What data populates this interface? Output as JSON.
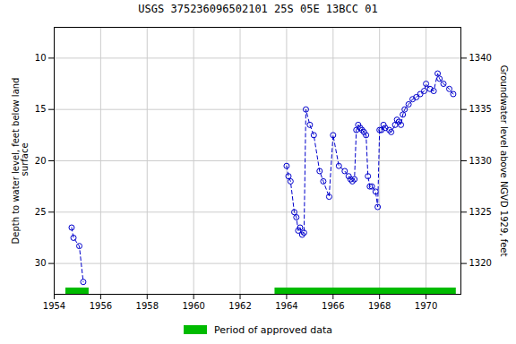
{
  "chart_data": {
    "type": "line",
    "title": "USGS 375236096502101 25S 05E 13BCC 01",
    "ylabel": "Depth to water level, feet below land\n surface",
    "y2label": "Groundwater level above NGVD 1929, feet",
    "xlim": [
      1954,
      1971.5
    ],
    "xticks": [
      1954,
      1956,
      1958,
      1960,
      1962,
      1964,
      1966,
      1968,
      1970
    ],
    "ylim": [
      33,
      7
    ],
    "yticks": [
      10,
      15,
      20,
      25,
      30
    ],
    "y2lim": [
      1317,
      1343
    ],
    "y2ticks": [
      1320,
      1325,
      1330,
      1335,
      1340
    ],
    "grid": true,
    "legend": "bottom",
    "series": [
      {
        "color": "#0000cc",
        "marker": "o",
        "line_style": "dashed",
        "x": [
          1954.75,
          1954.83,
          1955.08,
          1955.25
        ],
        "values": [
          26.5,
          27.5,
          28.3,
          31.8
        ]
      },
      {
        "color": "#0000cc",
        "marker": "o",
        "line_style": "dashed",
        "x": [
          1964.0,
          1964.08,
          1964.17,
          1964.33,
          1964.42,
          1964.5,
          1964.58,
          1964.67,
          1964.75,
          1964.83,
          1965.0,
          1965.17,
          1965.42,
          1965.58,
          1965.83,
          1966.0,
          1966.25,
          1966.5,
          1966.67,
          1966.75,
          1966.83,
          1966.92,
          1967.0,
          1967.08,
          1967.17,
          1967.25,
          1967.33,
          1967.42,
          1967.5,
          1967.58,
          1967.67,
          1967.83,
          1967.92,
          1968.0,
          1968.08,
          1968.17,
          1968.25,
          1968.42,
          1968.5,
          1968.67,
          1968.75,
          1968.83,
          1968.92,
          1969.0,
          1969.08,
          1969.25,
          1969.42,
          1969.58,
          1969.75,
          1969.92,
          1970.0,
          1970.17,
          1970.33,
          1970.5,
          1970.58,
          1970.75,
          1971.0,
          1971.17
        ],
        "values": [
          20.5,
          21.5,
          22.0,
          25.0,
          25.5,
          26.8,
          26.5,
          27.2,
          27.0,
          15.0,
          16.5,
          17.5,
          21.0,
          22.0,
          23.5,
          17.5,
          20.5,
          21.0,
          21.5,
          21.8,
          22.0,
          21.8,
          17.0,
          16.5,
          16.8,
          17.0,
          17.2,
          17.5,
          21.5,
          22.5,
          22.5,
          23.0,
          24.5,
          17.0,
          17.0,
          16.5,
          16.8,
          17.0,
          17.2,
          16.5,
          16.0,
          16.2,
          16.5,
          15.5,
          15.0,
          14.5,
          14.0,
          13.8,
          13.5,
          13.2,
          12.5,
          13.0,
          13.2,
          11.5,
          12.0,
          12.5,
          13.0,
          13.5
        ]
      }
    ],
    "approved": {
      "name": "Period of approved data",
      "color": "#00bb00",
      "periods": [
        [
          1954.5,
          1955.5
        ],
        [
          1963.5,
          1971.3
        ]
      ]
    }
  }
}
